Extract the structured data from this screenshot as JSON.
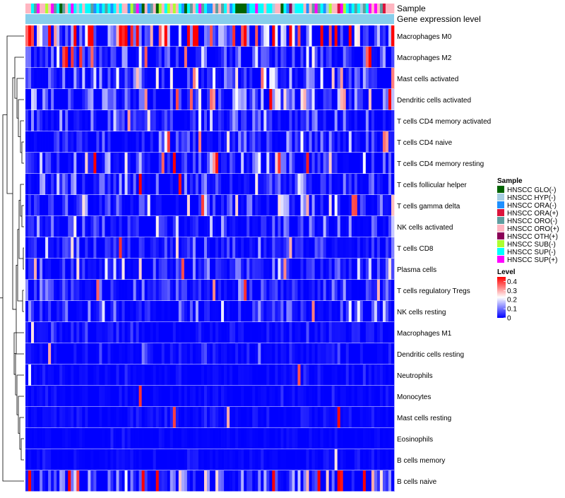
{
  "chart_data": {
    "type": "heatmap",
    "title": "",
    "annotation_tracks": [
      "Sample",
      "Gene expression level"
    ],
    "rows": [
      "Macrophages M0",
      "Macrophages M2",
      "Mast cells activated",
      "Dendritic cells activated",
      "T cells CD4 memory activated",
      "T cells CD4 naive",
      "T cells CD4 memory resting",
      "T cells follicular helper",
      "T cells gamma delta",
      "NK cells activated",
      "T cells CD8",
      "Plasma cells",
      "T cells regulatory  Tregs",
      "NK cells resting",
      "Macrophages M1",
      "Dendritic cells resting",
      "Neutrophils",
      "Monocytes",
      "Mast cells resting",
      "Eosinophils",
      "B cells memory",
      "B cells naive"
    ],
    "row_mean_level": [
      0.26,
      0.1,
      0.09,
      0.11,
      0.05,
      0.06,
      0.07,
      0.06,
      0.07,
      0.05,
      0.04,
      0.05,
      0.05,
      0.04,
      0.02,
      0.015,
      0.01,
      0.01,
      0.012,
      0.005,
      0.008,
      0.12
    ],
    "n_samples": 130,
    "color_scale": {
      "title": "Level",
      "ticks": [
        "0.4",
        "0.3",
        "0.2",
        "0.1",
        "0"
      ],
      "range": [
        0,
        0.45
      ],
      "low": "#0000ff",
      "mid": "#ffffff",
      "high": "#ff0000"
    },
    "sample_legend": {
      "title": "Sample",
      "items": [
        {
          "label": "HNSCC GLO(-)",
          "color": "#006400"
        },
        {
          "label": "HNSCC HYP(-)",
          "color": "#a6cee3"
        },
        {
          "label": "HNSCC ORA(-)",
          "color": "#1e90ff"
        },
        {
          "label": "HNSCC ORA(+)",
          "color": "#dc143c"
        },
        {
          "label": "HNSCC ORO(-)",
          "color": "#5f9ea0"
        },
        {
          "label": "HNSCC ORO(+)",
          "color": "#ffb6c1"
        },
        {
          "label": "HNSCC OTH(+)",
          "color": "#8b0057"
        },
        {
          "label": "HNSCC SUB(-)",
          "color": "#adff2f"
        },
        {
          "label": "HNSCC SUP(-)",
          "color": "#00ffff"
        },
        {
          "label": "HNSCC SUP(+)",
          "color": "#ff00ff"
        }
      ]
    },
    "gene_expression_color": "#87ceeb"
  }
}
